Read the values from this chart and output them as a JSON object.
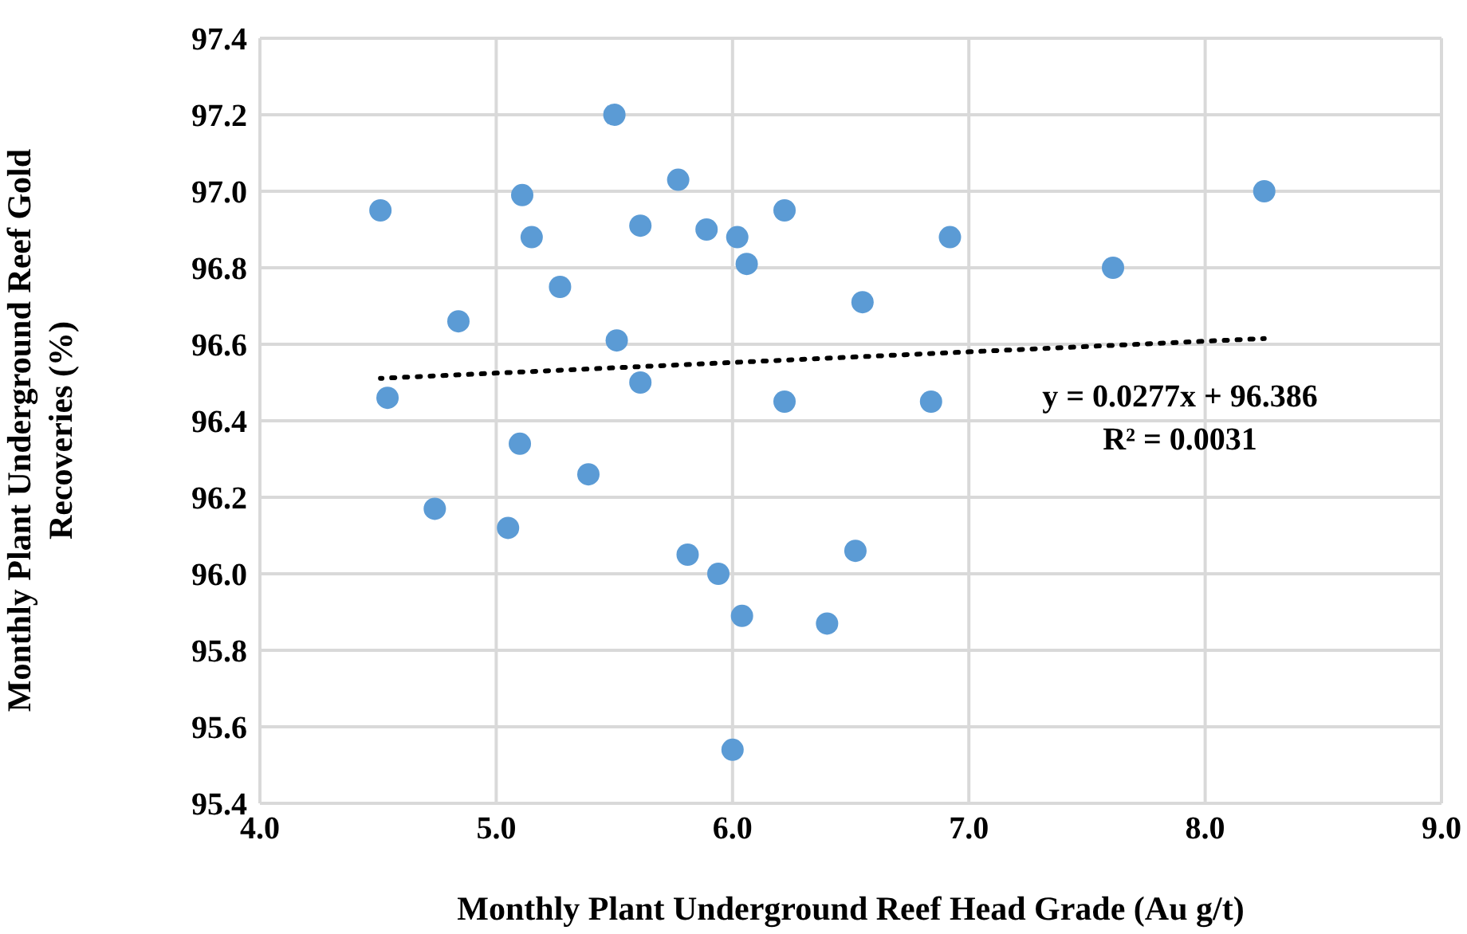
{
  "chart_data": {
    "type": "scatter",
    "xlabel": "Monthly Plant Underground Reef Head Grade (Au g/t)",
    "ylabel": "Monthly Plant Underground Reef Gold Recoveries (%)",
    "xlim": [
      4,
      9
    ],
    "ylim": [
      95.4,
      97.4
    ],
    "xticks": [
      {
        "value": 4,
        "label": "4.0"
      },
      {
        "value": 5,
        "label": "5.0"
      },
      {
        "value": 6,
        "label": "6.0"
      },
      {
        "value": 7,
        "label": "7.0"
      },
      {
        "value": 8,
        "label": "8.0"
      },
      {
        "value": 9,
        "label": "9.0"
      }
    ],
    "yticks": [
      {
        "value": 95.4,
        "label": "95.4"
      },
      {
        "value": 95.6,
        "label": "95.6"
      },
      {
        "value": 95.8,
        "label": "95.8"
      },
      {
        "value": 96,
        "label": "96.0"
      },
      {
        "value": 96.2,
        "label": "96.2"
      },
      {
        "value": 96.4,
        "label": "96.4"
      },
      {
        "value": 96.6,
        "label": "96.6"
      },
      {
        "value": 96.8,
        "label": "96.8"
      },
      {
        "value": 97,
        "label": "97.0"
      },
      {
        "value": 97.2,
        "label": "97.2"
      },
      {
        "value": 97.4,
        "label": "97.4"
      }
    ],
    "grid": true,
    "marker": "circle",
    "series": [
      {
        "type": "scatter",
        "color": "#5b9bd5",
        "x": [
          4.51,
          4.54,
          4.84,
          4.74,
          5.11,
          5.15,
          5.1,
          5.05,
          5.27,
          5.39,
          5.5,
          5.51,
          5.61,
          5.61,
          5.77,
          5.89,
          5.81,
          5.94,
          6.02,
          6.06,
          6.04,
          6.0,
          6.22,
          6.22,
          6.4,
          6.52,
          6.55,
          6.92,
          6.84,
          7.61,
          8.25
        ],
        "values": [
          96.95,
          96.46,
          96.66,
          96.17,
          96.99,
          96.88,
          96.34,
          96.12,
          96.75,
          96.26,
          97.2,
          96.61,
          96.5,
          96.91,
          97.03,
          96.9,
          96.05,
          96.0,
          96.88,
          96.81,
          95.89,
          95.54,
          96.95,
          96.45,
          95.87,
          96.06,
          96.71,
          96.88,
          96.45,
          96.8,
          97.0
        ]
      },
      {
        "type": "line",
        "color": "#000000",
        "line_style": "dotted",
        "marker": "none",
        "x": [
          4.51,
          8.25
        ],
        "values": [
          96.511,
          96.615
        ]
      }
    ],
    "annotations": [
      "y = 0.0277x + 96.386",
      "R² = 0.0031"
    ]
  }
}
